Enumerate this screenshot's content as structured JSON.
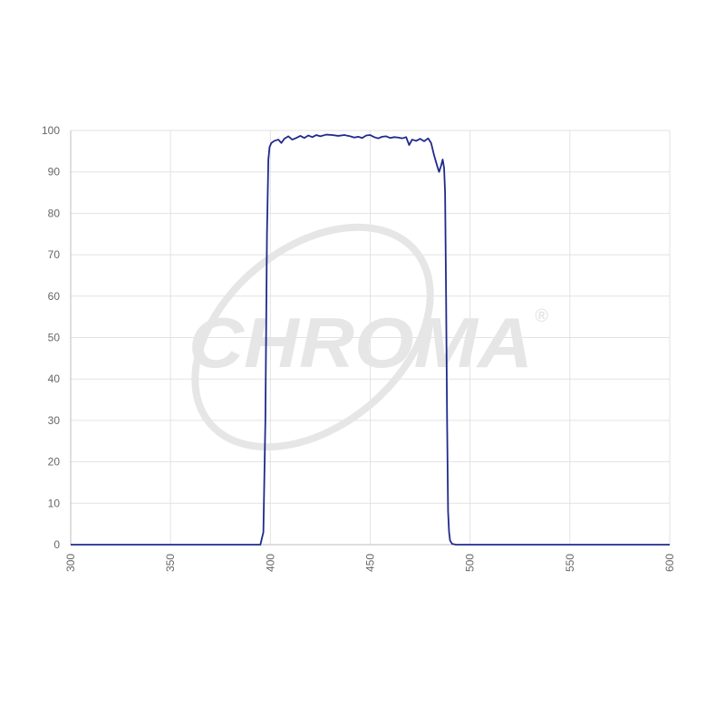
{
  "watermark": {
    "text": "CHROMA",
    "mark": "®"
  },
  "chart_data": {
    "type": "line",
    "title": "",
    "xlabel": "",
    "ylabel": "",
    "xlim": [
      300,
      600
    ],
    "ylim": [
      0,
      100
    ],
    "grid": true,
    "x_ticks": [
      300,
      350,
      400,
      450,
      500,
      550,
      600
    ],
    "y_ticks": [
      0,
      10,
      20,
      30,
      40,
      50,
      60,
      70,
      80,
      90,
      100
    ],
    "colors": {
      "series": "#1f2a8c",
      "grid": "#e2e2e2",
      "tick_text": "#666666",
      "watermark": "#e6e6e6"
    },
    "series": [
      {
        "x": [
          300,
          350,
          395,
          396.5,
          397.5,
          398.3,
          399,
          399.6,
          400.5,
          402,
          404,
          405.5,
          407,
          409,
          411,
          413,
          415,
          417,
          419,
          421,
          423,
          425,
          428,
          431,
          434,
          437,
          440,
          442,
          444,
          446,
          448,
          450,
          452,
          454,
          456,
          458,
          460,
          462,
          464,
          466,
          468,
          469.5,
          471,
          473,
          475,
          477,
          479,
          480.5,
          482,
          483.5,
          484.5,
          485.5,
          486.3,
          487,
          487.5,
          488,
          488.5,
          489,
          489.5,
          490,
          491,
          493,
          500,
          550,
          600
        ],
        "y": [
          0,
          0,
          0,
          3,
          30,
          75,
          93,
          96,
          97,
          97.5,
          97.8,
          97,
          98,
          98.6,
          97.8,
          98.2,
          98.7,
          98.2,
          98.8,
          98.4,
          98.9,
          98.6,
          99,
          98.9,
          98.7,
          98.9,
          98.6,
          98.3,
          98.5,
          98.2,
          98.8,
          98.9,
          98.4,
          98.1,
          98.5,
          98.6,
          98.2,
          98.4,
          98.3,
          98.1,
          98.4,
          96.5,
          97.8,
          97.5,
          98.0,
          97.4,
          98.1,
          97.0,
          94.0,
          91.5,
          90.0,
          91.5,
          93.0,
          91.0,
          85,
          60,
          30,
          8,
          3,
          1,
          0.2,
          0,
          0,
          0,
          0
        ]
      }
    ]
  }
}
